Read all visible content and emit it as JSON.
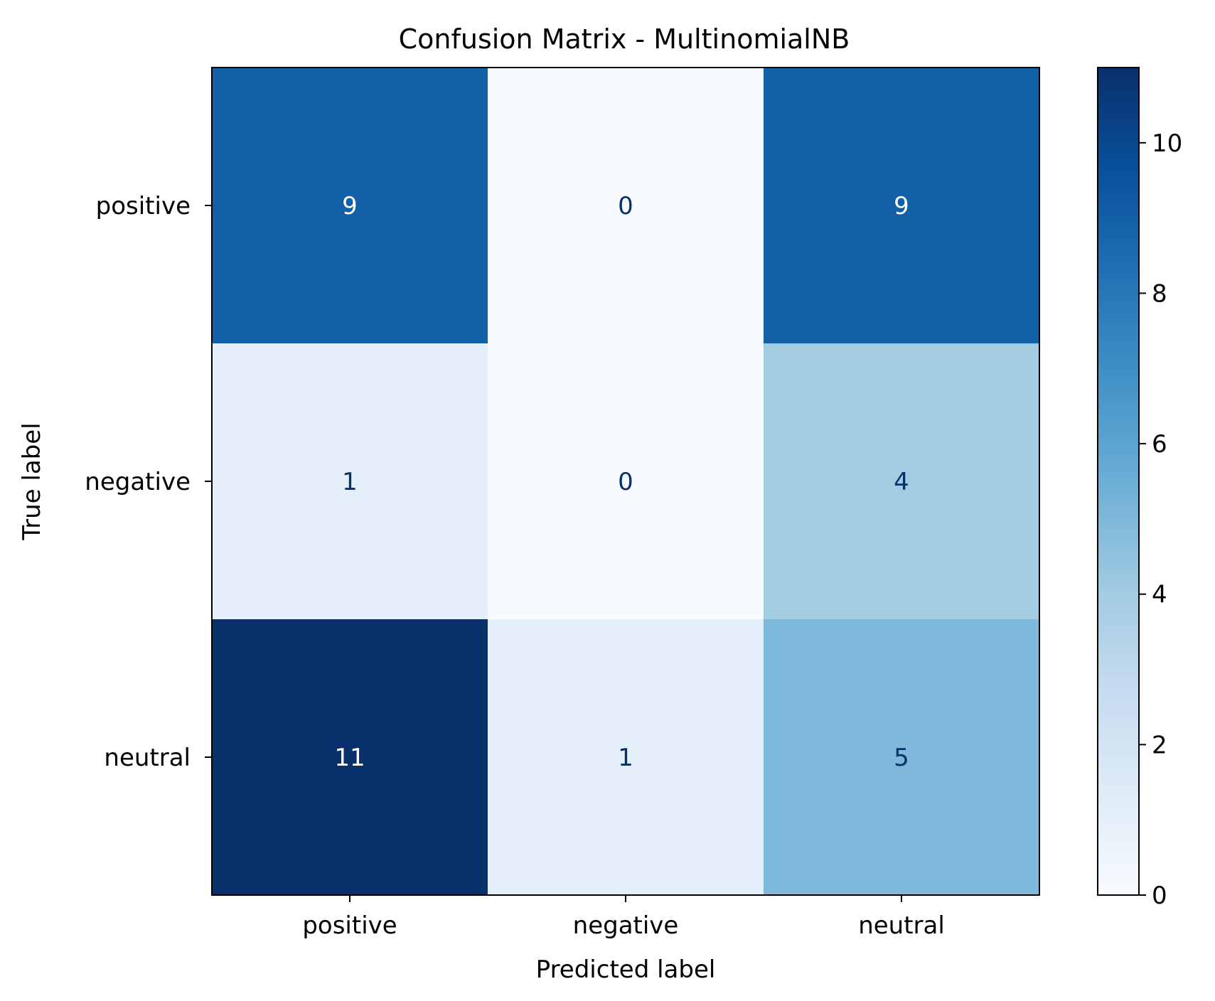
{
  "chart_data": {
    "type": "heatmap",
    "title": "Confusion Matrix - MultinomialNB",
    "xlabel": "Predicted label",
    "ylabel": "True label",
    "x_categories": [
      "positive",
      "negative",
      "neutral"
    ],
    "y_categories": [
      "positive",
      "negative",
      "neutral"
    ],
    "values": [
      [
        9,
        0,
        9
      ],
      [
        1,
        0,
        4
      ],
      [
        11,
        1,
        5
      ]
    ],
    "colormap": "Blues",
    "colorbar": {
      "min": 0,
      "max": 11,
      "ticks": [
        0,
        2,
        4,
        6,
        8,
        10
      ]
    },
    "text_colors": {
      "light": "#ffffff",
      "dark": "#08306b"
    },
    "grid": false
  }
}
